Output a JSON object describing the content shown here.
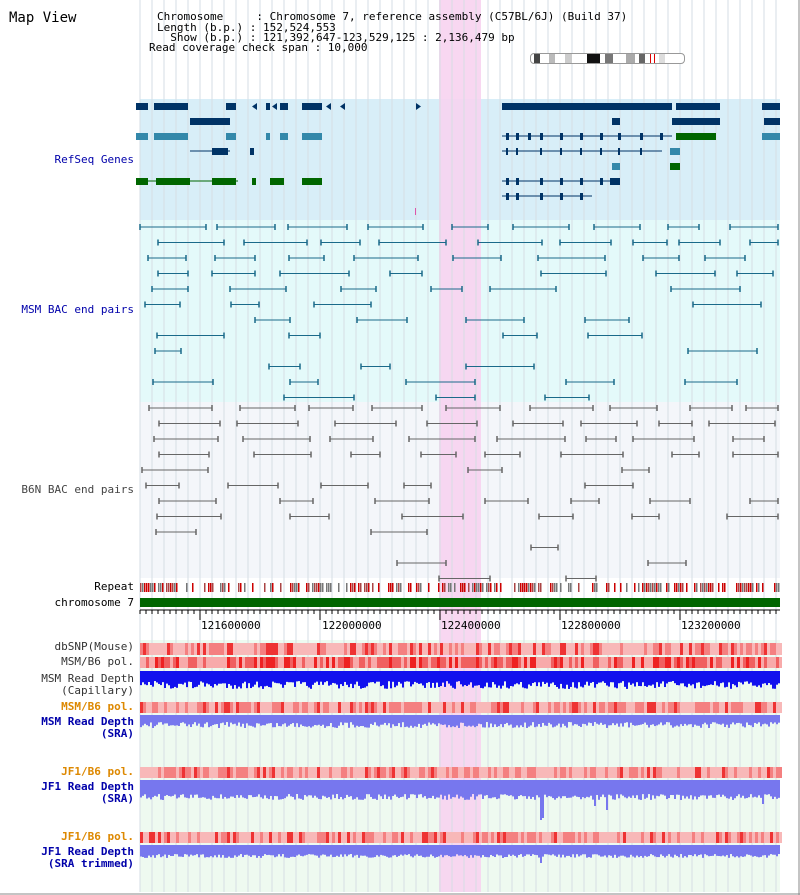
{
  "title": "Map View",
  "info": {
    "lines": [
      "Chromosome     : Chromosome 7, reference assembly (C57BL/6J) (Build 37)",
      "Length (b.p.) : 152,524,553",
      "  Show (b.p.) : 121,392,647-123,529,125 : 2,136,479 bp",
      "Read coverage check span : 10,000"
    ]
  },
  "tracks": {
    "refseq": "RefSeq Genes",
    "msm_bac": "MSM BAC end pairs",
    "b6n_bac": "B6N BAC end pairs",
    "repeat": "Repeat",
    "chromosome": "chromosome 7",
    "dbsnp": "dbSNP(Mouse)",
    "msm_b6_pol_1": "MSM/B6 pol.",
    "msm_depth_cap_1": "MSM Read Depth",
    "msm_depth_cap_2": "(Capillary)",
    "msm_b6_pol_2": "MSM/B6 pol.",
    "msm_depth_sra_1": "MSM Read Depth",
    "msm_depth_sra_2": "(SRA)",
    "jf1_b6_pol_1": "JF1/B6 pol.",
    "jf1_depth_sra_1": "JF1 Read Depth",
    "jf1_depth_sra_2": "(SRA)",
    "jf1_b6_pol_2": "JF1/B6 pol.",
    "jf1_depth_trim_1": "JF1 Read Depth",
    "jf1_depth_trim_2": "(SRA trimmed)"
  },
  "axis": {
    "ticks": [
      "121600000",
      "122000000",
      "122400000",
      "122800000",
      "123200000"
    ]
  },
  "colors": {
    "refseq_bg": "#d8eef8",
    "bac_bg": "#e4fafa",
    "b6n_bg": "#f4f6fa",
    "highlight": "#f7d3f0",
    "gene_dark": "#003366",
    "gene_mid": "#3388aa",
    "gene_green": "#006600",
    "msm_pair": "#1a6a8a",
    "b6n_pair": "#666666",
    "chromosome_bar": "#006600",
    "depth_blue": "#1111ee",
    "depth_light": "#7777ee",
    "label_blue": "#0000aa",
    "label_orange": "#dd8800"
  }
}
